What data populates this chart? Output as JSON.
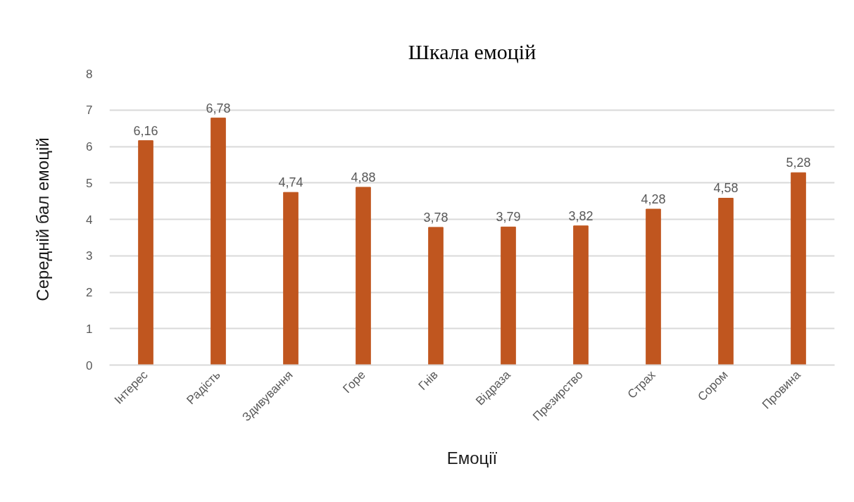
{
  "chart_data": {
    "type": "bar",
    "title": "Шкала емоцій",
    "xlabel": "Емоції",
    "ylabel": "Середній бал емоцій",
    "categories": [
      "Інтерес",
      "Радість",
      "Здивування",
      "Горе",
      "Гнів",
      "Відраза",
      "Презирство",
      "Страх",
      "Сором",
      "Провина"
    ],
    "values": [
      6.16,
      6.78,
      4.74,
      4.88,
      3.78,
      3.79,
      3.82,
      4.28,
      4.58,
      5.28
    ],
    "value_labels": [
      "6,16",
      "6,78",
      "4,74",
      "4,88",
      "3,78",
      "3,79",
      "3,82",
      "4,28",
      "4,58",
      "5,28"
    ],
    "color": "#c0561f",
    "ylim": [
      0,
      8
    ],
    "yticks": [
      0,
      1,
      2,
      3,
      4,
      5,
      6,
      7,
      8
    ],
    "grid": "y"
  }
}
